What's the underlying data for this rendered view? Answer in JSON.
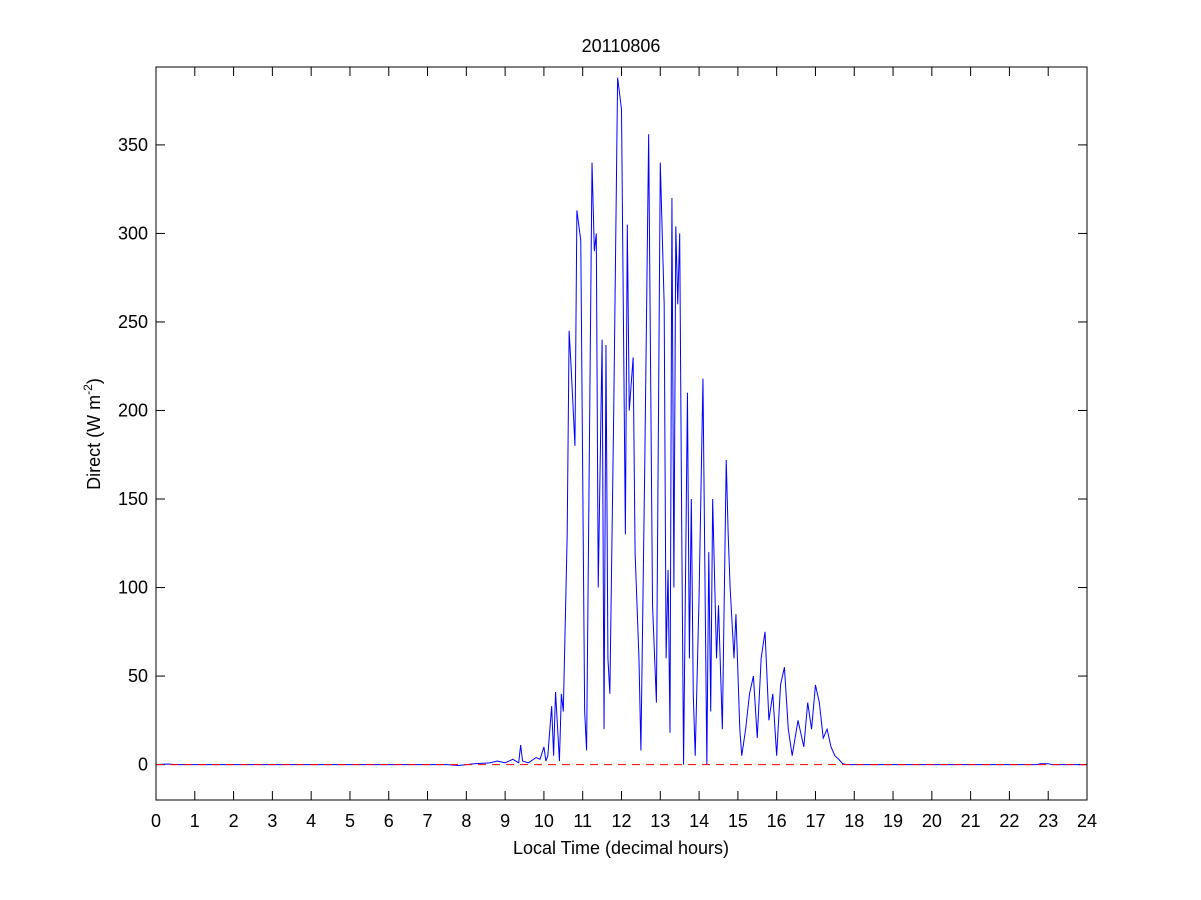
{
  "chart_data": {
    "type": "line",
    "title": "20110806",
    "xlabel": "Local Time (decimal hours)",
    "ylabel": [
      "Direct (W m",
      "-2",
      ")"
    ],
    "color": "#0000ff",
    "reference_line": {
      "value": 0,
      "color": "#ff0000",
      "style": "dashed"
    },
    "xlim": [
      0,
      24
    ],
    "ylim": [
      -20,
      394
    ],
    "xticks": [
      0,
      1,
      2,
      3,
      4,
      5,
      6,
      7,
      8,
      9,
      10,
      11,
      12,
      13,
      14,
      15,
      16,
      17,
      18,
      19,
      20,
      21,
      22,
      23,
      24
    ],
    "yticks": [
      0,
      50,
      100,
      150,
      200,
      250,
      300,
      350
    ],
    "x": [
      0,
      0.3,
      0.5,
      7.5,
      7.8,
      8.2,
      8.6,
      8.8,
      9.0,
      9.2,
      9.35,
      9.4,
      9.45,
      9.6,
      9.8,
      9.9,
      10.0,
      10.05,
      10.1,
      10.2,
      10.25,
      10.3,
      10.4,
      10.45,
      10.5,
      10.6,
      10.65,
      10.7,
      10.8,
      10.85,
      10.95,
      11.05,
      11.1,
      11.24,
      11.3,
      11.35,
      11.4,
      11.5,
      11.55,
      11.6,
      11.65,
      11.7,
      11.8,
      11.9,
      12.0,
      12.05,
      12.1,
      12.15,
      12.2,
      12.3,
      12.35,
      12.45,
      12.5,
      12.6,
      12.7,
      12.8,
      12.9,
      13.0,
      13.1,
      13.15,
      13.2,
      13.25,
      13.3,
      13.35,
      13.4,
      13.45,
      13.5,
      13.55,
      13.6,
      13.7,
      13.75,
      13.8,
      13.85,
      13.9,
      14.0,
      14.1,
      14.2,
      14.25,
      14.3,
      14.35,
      14.45,
      14.5,
      14.6,
      14.7,
      14.75,
      14.8,
      14.9,
      14.95,
      15.05,
      15.1,
      15.2,
      15.3,
      15.4,
      15.5,
      15.6,
      15.7,
      15.8,
      15.9,
      16.0,
      16.1,
      16.2,
      16.3,
      16.4,
      16.55,
      16.7,
      16.8,
      16.9,
      17.0,
      17.1,
      17.2,
      17.3,
      17.4,
      17.5,
      17.6,
      17.7,
      17.8,
      22.7,
      22.8,
      23.0,
      23.1,
      24
    ],
    "values": [
      0,
      0.3,
      0,
      0,
      -0.5,
      0.5,
      1,
      2,
      1,
      3,
      1,
      11,
      2,
      1,
      4,
      3,
      10,
      2,
      5,
      33,
      5,
      41,
      2,
      40,
      30,
      130,
      245,
      225,
      180,
      313,
      296,
      30,
      8,
      340,
      290,
      300,
      100,
      240,
      20,
      237,
      60,
      40,
      200,
      388,
      370,
      250,
      130,
      305,
      200,
      230,
      120,
      60,
      8,
      170,
      356,
      90,
      35,
      340,
      260,
      60,
      110,
      18,
      320,
      100,
      304,
      260,
      300,
      140,
      0,
      210,
      60,
      150,
      40,
      5,
      95,
      218,
      0,
      120,
      30,
      150,
      60,
      90,
      20,
      172,
      130,
      100,
      60,
      85,
      20,
      5,
      20,
      40,
      50,
      15,
      60,
      75,
      25,
      40,
      5,
      45,
      55,
      20,
      5,
      25,
      10,
      35,
      20,
      45,
      35,
      15,
      20,
      10,
      5,
      3,
      0.5,
      0,
      0,
      0.5,
      0.5,
      0,
      0
    ]
  }
}
